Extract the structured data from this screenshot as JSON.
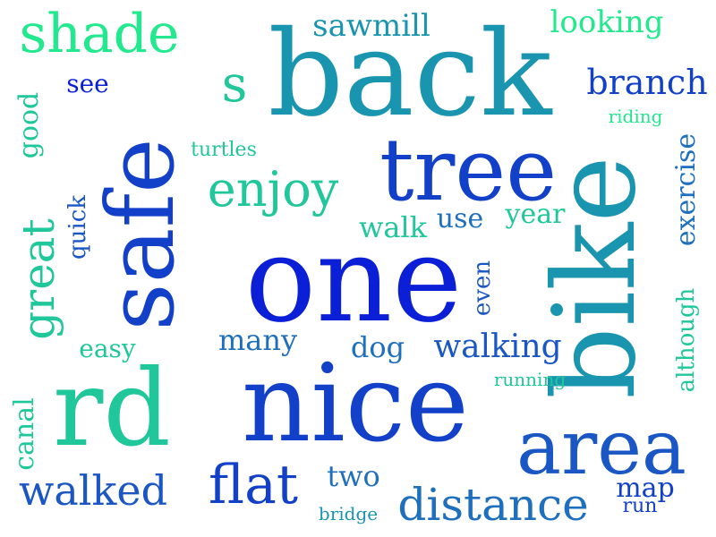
{
  "colors": {
    "background": "#ffffff",
    "dark_blue": "#0a1fd6",
    "royal_blue": "#1240c8",
    "mid_blue": "#1a56c4",
    "steel_blue": "#1f6fbf",
    "teal": "#1a95b0",
    "light_teal": "#20a9a8",
    "green_teal": "#1fc79a",
    "mint": "#22e88e"
  },
  "words": [
    {
      "id": "back",
      "text": "back"
    },
    {
      "id": "one",
      "text": "one"
    },
    {
      "id": "nice",
      "text": "nice"
    },
    {
      "id": "bike",
      "text": "bike"
    },
    {
      "id": "safe",
      "text": "safe"
    },
    {
      "id": "tree",
      "text": "tree"
    },
    {
      "id": "rd",
      "text": "rd"
    },
    {
      "id": "area",
      "text": "area"
    },
    {
      "id": "shade",
      "text": "shade"
    },
    {
      "id": "enjoy",
      "text": "enjoy"
    },
    {
      "id": "flat",
      "text": "flat"
    },
    {
      "id": "walked",
      "text": "walked"
    },
    {
      "id": "distance",
      "text": "distance"
    },
    {
      "id": "great",
      "text": "great"
    },
    {
      "id": "walking",
      "text": "walking"
    },
    {
      "id": "branch",
      "text": "branch"
    },
    {
      "id": "sawmill",
      "text": "sawmill"
    },
    {
      "id": "looking",
      "text": "looking"
    },
    {
      "id": "exercise",
      "text": "exercise"
    },
    {
      "id": "many",
      "text": "many"
    },
    {
      "id": "dog",
      "text": "dog"
    },
    {
      "id": "two",
      "text": "two"
    },
    {
      "id": "map",
      "text": "map"
    },
    {
      "id": "s",
      "text": "s"
    },
    {
      "id": "although",
      "text": "although"
    },
    {
      "id": "good",
      "text": "good"
    },
    {
      "id": "canal",
      "text": "canal"
    },
    {
      "id": "use",
      "text": "use"
    },
    {
      "id": "walk",
      "text": "walk"
    },
    {
      "id": "year",
      "text": "year"
    },
    {
      "id": "easy",
      "text": "easy"
    },
    {
      "id": "quick",
      "text": "quick"
    },
    {
      "id": "even",
      "text": "even"
    },
    {
      "id": "see",
      "text": "see"
    },
    {
      "id": "turtles",
      "text": "turtles"
    },
    {
      "id": "riding",
      "text": "riding"
    },
    {
      "id": "running",
      "text": "running"
    },
    {
      "id": "bridge",
      "text": "bridge"
    },
    {
      "id": "run",
      "text": "run"
    }
  ]
}
